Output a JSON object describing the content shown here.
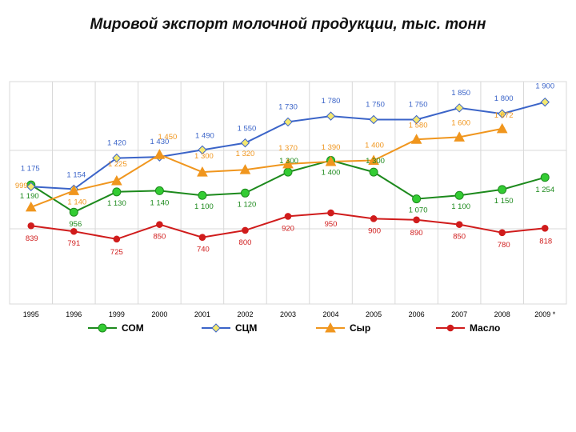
{
  "chart_data": {
    "type": "line",
    "title": "Мировой экспорт молочной продукции, тыс. тонн",
    "categories": [
      "1995",
      "1996",
      "1999",
      "2000",
      "2001",
      "2002",
      "2003",
      "2004",
      "2005",
      "2006",
      "2007",
      "2008",
      "2009 *"
    ],
    "series": [
      {
        "name": "СОМ",
        "color": "#1d8a1d",
        "values": [
          1190,
          956,
          1130,
          1140,
          1100,
          1120,
          1300,
          1400,
          1300,
          1070,
          1100,
          1150,
          1254
        ],
        "labels": [
          "1 190",
          "956",
          "1 130",
          "1 140",
          "1 100",
          "1 120",
          "1 300",
          "1 400",
          "1 300",
          "1 070",
          "1 100",
          "1 150",
          "1 254"
        ]
      },
      {
        "name": "СЦМ",
        "color": "#3b64c8",
        "values": [
          1175,
          1154,
          1420,
          1430,
          1490,
          1550,
          1730,
          1780,
          1750,
          1750,
          1850,
          1800,
          1900
        ],
        "labels": [
          "1 175",
          "1 154",
          "1 420",
          "1 430",
          "1 490",
          "1 550",
          "1 730",
          "1 780",
          "1 750",
          "1 750",
          "1 850",
          "1 800",
          "1 900"
        ]
      },
      {
        "name": "Сыр",
        "color": "#f0961e",
        "values": [
          999,
          1140,
          1225,
          1450,
          1300,
          1320,
          1370,
          1390,
          1400,
          1580,
          1600,
          1672,
          null
        ],
        "labels": [
          "999",
          "1 140",
          "1 225",
          "1 450",
          "1 300",
          "1 320",
          "1 370",
          "1 390",
          "1 400",
          "1 580",
          "1 600",
          "1 672",
          ""
        ]
      },
      {
        "name": "Масло",
        "color": "#d01c1c",
        "values": [
          839,
          791,
          725,
          850,
          740,
          800,
          920,
          950,
          900,
          890,
          850,
          780,
          818
        ],
        "labels": [
          "839",
          "791",
          "725",
          "850",
          "740",
          "800",
          "920",
          "950",
          "900",
          "890",
          "850",
          "780",
          "818"
        ]
      }
    ]
  }
}
